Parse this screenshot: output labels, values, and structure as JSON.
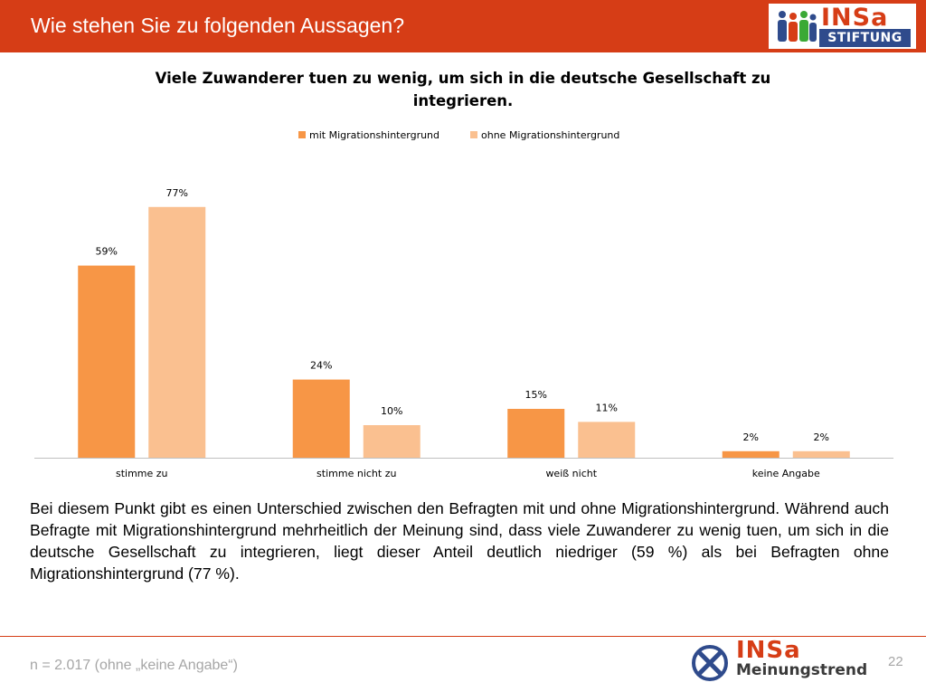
{
  "header": {
    "title": "Wie stehen Sie zu folgenden Aussagen?",
    "logo_top": "INSa",
    "logo_bottom": "STIFTUNG"
  },
  "chart_data": {
    "type": "bar",
    "title": "Viele Zuwanderer tuen zu wenig, um sich in die deutsche Gesellschaft zu integrieren.",
    "categories": [
      "stimme zu",
      "stimme nicht zu",
      "weiß nicht",
      "keine Angabe"
    ],
    "series": [
      {
        "name": "mit Migrationshintergrund",
        "values": [
          59,
          24,
          15,
          2
        ],
        "labels": [
          "59%",
          "24%",
          "15%",
          "2%"
        ],
        "color": "#f79646"
      },
      {
        "name": "ohne Migrationshintergrund",
        "values": [
          77,
          10,
          11,
          2
        ],
        "labels": [
          "77%",
          "10%",
          "11%",
          "2%"
        ],
        "color": "#fac090"
      }
    ],
    "ylim": [
      0,
      100
    ],
    "grid": false,
    "legend_position": "top-center"
  },
  "body_text": "Bei diesem Punkt gibt es einen Unterschied zwischen den Befragten mit und ohne Migrationshintergrund. Während auch Befragte mit Migrationshintergrund mehrheitlich der Meinung sind, dass viele Zuwanderer zu wenig tuen, um sich in die deutsche Gesellschaft zu integrieren, liegt dieser Anteil deutlich niedriger (59 %) als bei Befragten ohne Migrationshintergrund (77 %).",
  "footer": {
    "note": "n = 2.017 (ohne „keine Angabe“)",
    "logo_top": "INSa",
    "logo_bottom": "Meinungstrend",
    "page_number": "22"
  },
  "colors": {
    "accent": "#d63d16",
    "navy": "#2f4b8c"
  }
}
